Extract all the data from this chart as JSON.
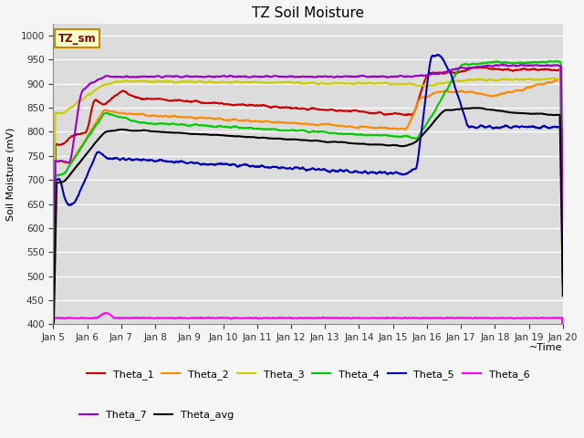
{
  "title": "TZ Soil Moisture",
  "xlabel": "~Time",
  "ylabel": "Soil Moisture (mV)",
  "ylim": [
    400,
    1025
  ],
  "yticks": [
    400,
    450,
    500,
    550,
    600,
    650,
    700,
    750,
    800,
    850,
    900,
    950,
    1000
  ],
  "bg_color": "#dcdcdc",
  "fig_color": "#f5f5f5",
  "legend_label": "TZ_sm",
  "series": {
    "Theta_1": {
      "color": "#cc0000"
    },
    "Theta_2": {
      "color": "#ff8800"
    },
    "Theta_3": {
      "color": "#cccc00"
    },
    "Theta_4": {
      "color": "#00cc00"
    },
    "Theta_5": {
      "color": "#0000bb"
    },
    "Theta_6": {
      "color": "#ff00ff"
    },
    "Theta_7": {
      "color": "#9900cc"
    },
    "Theta_avg": {
      "color": "#000000"
    }
  },
  "tick_labels": [
    "Jan 5",
    "Jan 6",
    "Jan 7",
    "Jan 8",
    "Jan 9",
    "Jan 10",
    "Jan 11",
    "Jan 12",
    "Jan 13",
    "Jan 14",
    "Jan 15",
    "Jan 16",
    "Jan 17",
    "Jan 18",
    "Jan 19",
    "Jan 20"
  ]
}
